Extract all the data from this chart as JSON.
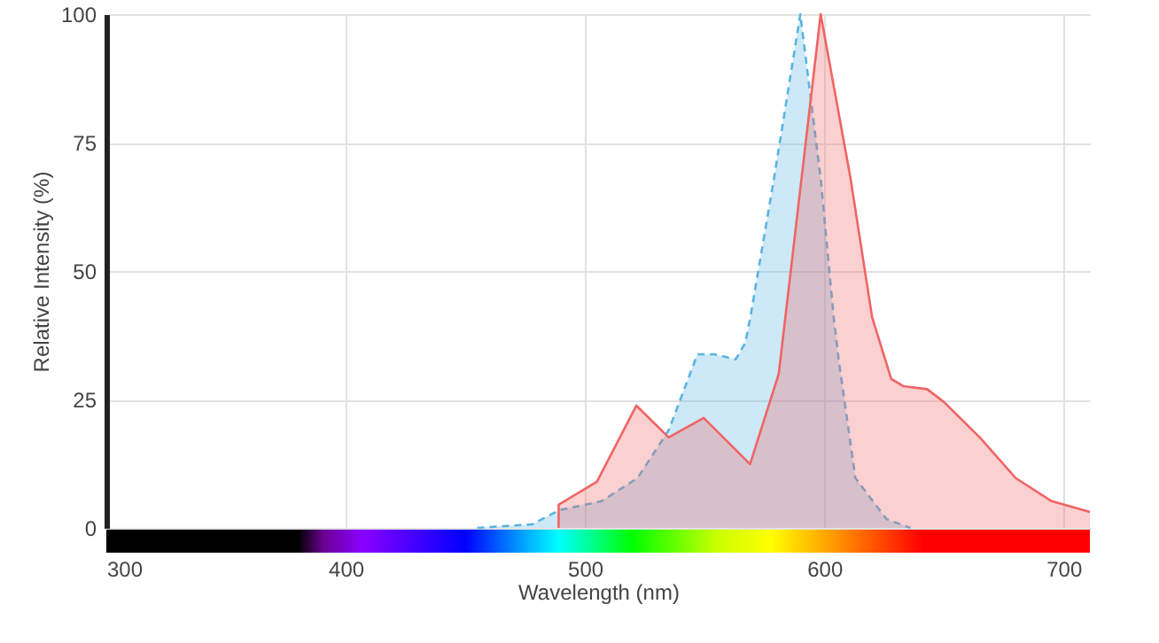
{
  "chart_data": {
    "type": "area",
    "xlabel": "Wavelength (nm)",
    "ylabel": "Relative Intensity (%)",
    "xlim": [
      300,
      711
    ],
    "xticks": [
      300,
      400,
      500,
      600,
      700
    ],
    "ylim": [
      0,
      100
    ],
    "yticks": [
      0,
      25,
      50,
      75,
      100
    ],
    "grid": true,
    "series": [
      {
        "color": "#5ab4e0",
        "line_style": "dashed",
        "x": [
          455,
          478,
          489,
          507,
          522,
          535,
          547,
          554,
          563,
          567,
          569,
          579,
          590,
          598.5,
          604,
          606,
          613,
          626,
          636
        ],
        "values": [
          0,
          0.7,
          3.4,
          5.2,
          9.7,
          19,
          33.8,
          33.8,
          32.8,
          36,
          40.7,
          68,
          100,
          68,
          40.7,
          32.8,
          9.7,
          1.7,
          0
        ]
      },
      {
        "color": "#f06464",
        "line_style": "solid",
        "x": [
          489,
          489,
          505,
          521.5,
          535,
          549.6,
          569,
          581,
          598.5,
          611,
          620,
          628,
          633,
          643,
          650,
          665,
          680,
          695,
          711
        ],
        "values": [
          0,
          4.5,
          9,
          23.8,
          17.6,
          21.4,
          12.4,
          30,
          100,
          68,
          41,
          29,
          27.6,
          27,
          24.5,
          17.6,
          9.7,
          5.2,
          3.1
        ]
      }
    ]
  }
}
